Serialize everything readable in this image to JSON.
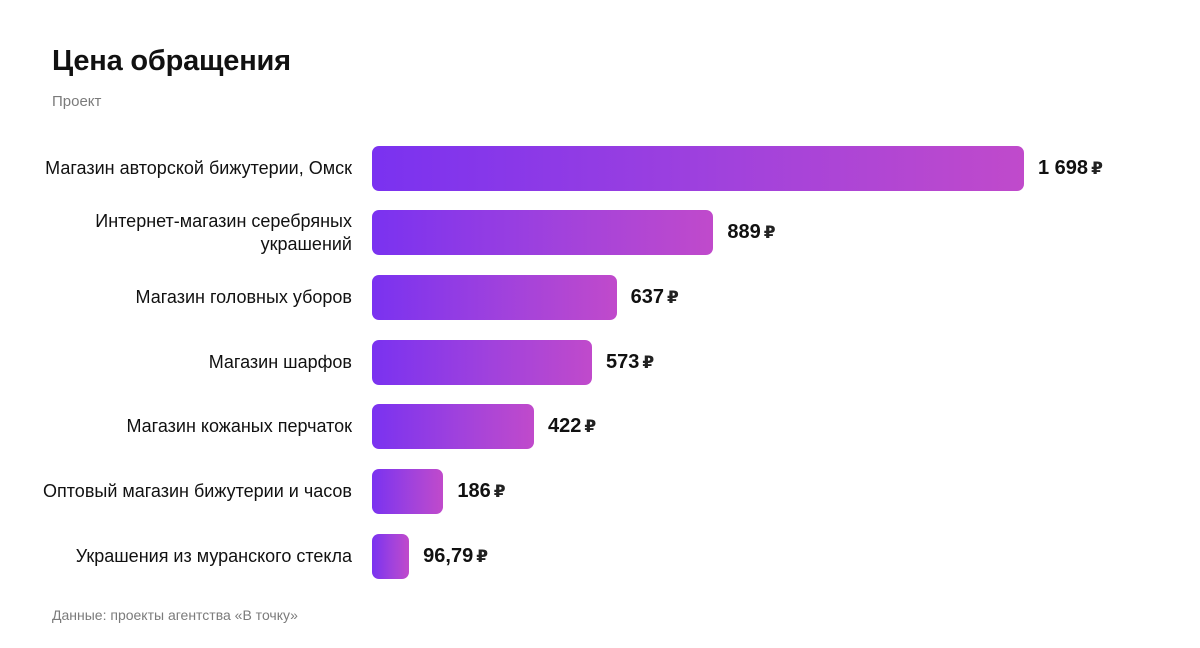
{
  "chart_data": {
    "type": "bar",
    "orientation": "horizontal",
    "title": "Цена обращения",
    "subtitle": "Проект",
    "source": "Данные: проекты агентства «В точку»",
    "unit": "₽",
    "categories": [
      "Магазин авторской бижутерии, Омск",
      "Интернет-магазин серебряных украшений",
      "Магазин головных уборов",
      "Магазин шарфов",
      "Магазин кожаных перчаток",
      "Оптовый магазин бижутерии и часов",
      "Украшения из муранского стекла"
    ],
    "values": [
      1698,
      889,
      637,
      573,
      422,
      186,
      96.79
    ],
    "value_labels": [
      "1 698",
      "889",
      "637",
      "573",
      "422",
      "186",
      "96,79"
    ],
    "colors": {
      "bar_start": "#7a32f0",
      "bar_end": "#c04acb"
    },
    "grid": false,
    "legend": false
  }
}
